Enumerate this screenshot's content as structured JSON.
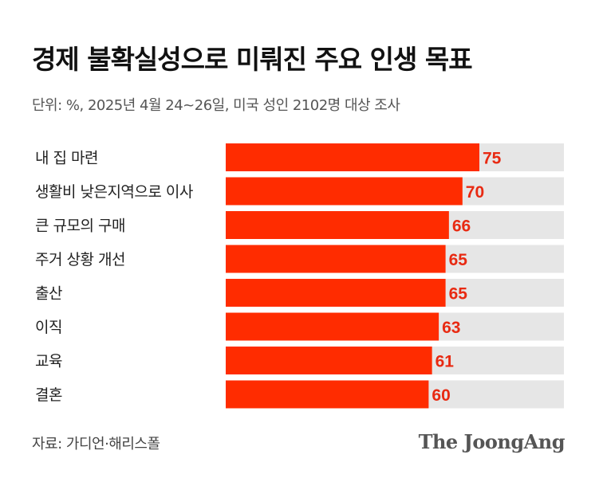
{
  "title": "경제 불확실성으로 미뤄진 주요 인생 목표",
  "subtitle": "단위: %, 2025년 4월 24~26일, 미국 성인 2102명 대상 조사",
  "source": "자료: 가디언·해리스폴",
  "logo_text": "The JoongAng",
  "colors": {
    "bar": "#ff2c00",
    "track": "#e6e6e6",
    "value": "#e82a12"
  },
  "chart_data": {
    "type": "bar",
    "orientation": "horizontal",
    "categories": [
      "내 집 마련",
      "생활비 낮은지역으로 이사",
      "큰 규모의 구매",
      "주거 상황 개선",
      "출산",
      "이직",
      "교육",
      "결혼"
    ],
    "values": [
      75,
      70,
      66,
      65,
      65,
      63,
      61,
      60
    ],
    "xlim": [
      0,
      100
    ],
    "unit": "%",
    "grid": false,
    "legend": "none"
  }
}
